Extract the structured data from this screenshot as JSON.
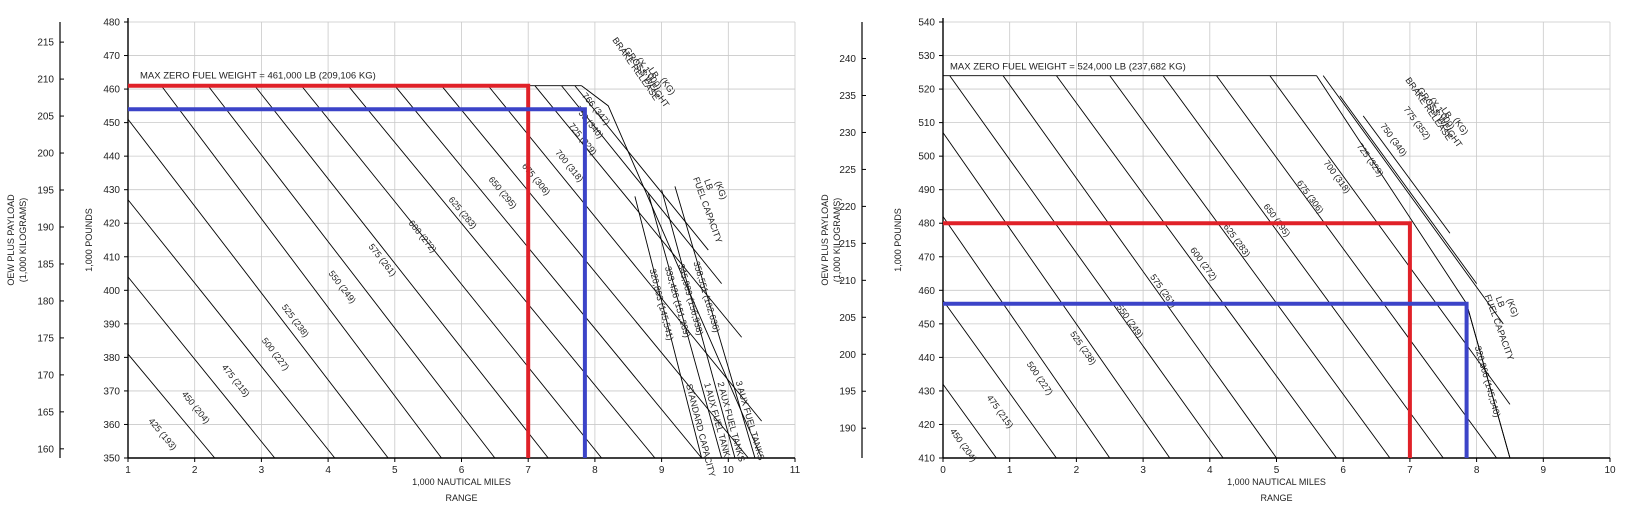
{
  "chart_data": [
    {
      "type": "line",
      "xlabel": "1,000 NAUTICAL MILES",
      "xlabel2": "RANGE",
      "ylabel": "1,000 POUNDS",
      "y2label": "OEW PLUS PAYLOAD",
      "y2label2": "(1,000 KILOGRAMS)",
      "xlim": [
        1,
        11
      ],
      "ylim": [
        350,
        480
      ],
      "y2lim": [
        158.76,
        217.72
      ],
      "x_ticks": [
        "1",
        "2",
        "3",
        "4",
        "5",
        "6",
        "7",
        "8",
        "9",
        "10",
        "11"
      ],
      "y_ticks": [
        "350",
        "360",
        "370",
        "380",
        "390",
        "400",
        "410",
        "420",
        "430",
        "440",
        "450",
        "460",
        "470",
        "480"
      ],
      "y2_ticks": [
        "160",
        "165",
        "170",
        "175",
        "180",
        "185",
        "190",
        "195",
        "200",
        "205",
        "210",
        "215"
      ],
      "max_zfw_label": "MAX ZERO FUEL WEIGHT = 461,000 LB (209,106 KG)",
      "max_zfw_lb": 461,
      "brake_release_title": [
        "BRAKE RELEASE",
        "GROSS WEIGHT",
        "(X 1,000)",
        "LB",
        "(KG)"
      ],
      "fuel_capacity_title": [
        "FUEL CAPACITY",
        "LB",
        "(KG)"
      ],
      "gross_weight_lines": [
        {
          "label": "425  (193)",
          "x1": 1.0,
          "y1": 381,
          "x2": 2.3,
          "y2": 350,
          "lx": 1.3,
          "ly": 361
        },
        {
          "label": "450  (204)",
          "x1": 1.0,
          "y1": 404,
          "x2": 3.2,
          "y2": 350,
          "lx": 1.8,
          "ly": 369
        },
        {
          "label": "475  (215)",
          "x1": 1.0,
          "y1": 427,
          "x2": 4.1,
          "y2": 350,
          "lx": 2.4,
          "ly": 377
        },
        {
          "label": "500  (227)",
          "x1": 1.0,
          "y1": 451,
          "x2": 4.9,
          "y2": 350,
          "lx": 3.0,
          "ly": 385
        },
        {
          "label": "525  (238)",
          "x1": 1.5,
          "y1": 461,
          "x2": 5.7,
          "y2": 350,
          "lx": 3.3,
          "ly": 395
        },
        {
          "label": "550  (249)",
          "x1": 2.2,
          "y1": 461,
          "x2": 6.5,
          "y2": 350,
          "lx": 4.0,
          "ly": 405
        },
        {
          "label": "575  (261)",
          "x1": 2.9,
          "y1": 461,
          "x2": 7.3,
          "y2": 350,
          "lx": 4.6,
          "ly": 413
        },
        {
          "label": "600  (272)",
          "x1": 3.6,
          "y1": 461,
          "x2": 8.1,
          "y2": 350,
          "lx": 5.2,
          "ly": 420
        },
        {
          "label": "625  (283)",
          "x1": 4.3,
          "y1": 461,
          "x2": 8.9,
          "y2": 350,
          "lx": 5.8,
          "ly": 427
        },
        {
          "label": "650  (295)",
          "x1": 5.0,
          "y1": 461,
          "x2": 9.6,
          "y2": 350,
          "lx": 6.4,
          "ly": 433
        },
        {
          "label": "675  (306)",
          "x1": 5.7,
          "y1": 461,
          "x2": 10.3,
          "y2": 350,
          "lx": 6.9,
          "ly": 437
        },
        {
          "label": "700  (318)",
          "x1": 6.4,
          "y1": 461,
          "x2": 10.5,
          "y2": 361,
          "lx": 7.4,
          "ly": 441
        },
        {
          "label": "725  (329)",
          "x1": 7.1,
          "y1": 461,
          "x2": 10.2,
          "y2": 386,
          "lx": 7.6,
          "ly": 449
        },
        {
          "label": "750  (340)",
          "x1": 7.5,
          "y1": 461,
          "x2": 9.9,
          "y2": 402,
          "lx": 7.7,
          "ly": 454
        },
        {
          "label": "766  (347)",
          "x1": 7.7,
          "y1": 461,
          "x2": 9.7,
          "y2": 412,
          "lx": 7.8,
          "ly": 458
        }
      ],
      "fuel_lines": [
        {
          "label": "320,863  (145,541)",
          "tank": "STANDARD CAPACITY",
          "x1": 8.6,
          "y1": 428,
          "x2": 9.6,
          "y2": 350
        },
        {
          "label": "333,426  (151,239)",
          "tank": "1 AUX FUEL TANK",
          "x1": 8.8,
          "y1": 429,
          "x2": 9.9,
          "y2": 350
        },
        {
          "label": "345,989  (156,938)",
          "tank": "2 AUX FUEL TANKS",
          "x1": 9.0,
          "y1": 430,
          "x2": 10.1,
          "y2": 350
        },
        {
          "label": "358,551  (162,636)",
          "tank": "3 AUX FUEL TANKS",
          "x1": 9.2,
          "y1": 431,
          "x2": 10.4,
          "y2": 350
        }
      ],
      "right_boundary": [
        [
          7.8,
          461
        ],
        [
          8.2,
          455
        ],
        [
          10.5,
          350
        ]
      ],
      "red_path": [
        [
          1.0,
          461
        ],
        [
          7.0,
          461
        ],
        [
          7.0,
          350
        ]
      ],
      "blue_path": [
        [
          1.0,
          454
        ],
        [
          7.85,
          454
        ],
        [
          7.85,
          350
        ]
      ]
    },
    {
      "type": "line",
      "xlabel": "1,000 NAUTICAL MILES",
      "xlabel2": "RANGE",
      "ylabel": "1,000 POUNDS",
      "y2label": "OEW PLUS PAYLOAD",
      "y2label2": "(1,000 KILOGRAMS)",
      "xlim": [
        0,
        10
      ],
      "ylim": [
        410,
        540
      ],
      "y2lim": [
        185.97,
        244.94
      ],
      "x_ticks": [
        "0",
        "1",
        "2",
        "3",
        "4",
        "5",
        "6",
        "7",
        "8",
        "9",
        "10"
      ],
      "y_ticks": [
        "410",
        "420",
        "430",
        "440",
        "450",
        "460",
        "470",
        "480",
        "490",
        "500",
        "510",
        "520",
        "530",
        "540"
      ],
      "y2_ticks": [
        "190",
        "195",
        "200",
        "205",
        "210",
        "215",
        "220",
        "225",
        "230",
        "235",
        "240"
      ],
      "max_zfw_label": "MAX ZERO FUEL WEIGHT = 524,000 LB (237,682 KG)",
      "max_zfw_lb": 524,
      "brake_release_title": [
        "BRAKE RELEASE",
        "GROSS WEIGHT",
        "(X 1,000)",
        "LB",
        "(KG)"
      ],
      "fuel_capacity_title": [
        "FUEL CAPACITY",
        "LB",
        "(KG)"
      ],
      "gross_weight_lines": [
        {
          "label": "450  (204)",
          "x1": 0.0,
          "y1": 432,
          "x2": 0.8,
          "y2": 410,
          "lx": 0.1,
          "ly": 418
        },
        {
          "label": "475  (215)",
          "x1": 0.0,
          "y1": 457,
          "x2": 1.7,
          "y2": 410,
          "lx": 0.65,
          "ly": 428
        },
        {
          "label": "500  (227)",
          "x1": 0.0,
          "y1": 482,
          "x2": 2.5,
          "y2": 410,
          "lx": 1.25,
          "ly": 438
        },
        {
          "label": "525  (238)",
          "x1": 0.0,
          "y1": 507,
          "x2": 3.4,
          "y2": 410,
          "lx": 1.9,
          "ly": 447
        },
        {
          "label": "550  (249)",
          "x1": 0.1,
          "y1": 524,
          "x2": 4.2,
          "y2": 410,
          "lx": 2.6,
          "ly": 455
        },
        {
          "label": "575  (261)",
          "x1": 0.9,
          "y1": 524,
          "x2": 5.0,
          "y2": 410,
          "lx": 3.1,
          "ly": 464
        },
        {
          "label": "600  (272)",
          "x1": 1.7,
          "y1": 524,
          "x2": 5.9,
          "y2": 410,
          "lx": 3.7,
          "ly": 472
        },
        {
          "label": "625  (283)",
          "x1": 2.5,
          "y1": 524,
          "x2": 6.7,
          "y2": 410,
          "lx": 4.2,
          "ly": 479
        },
        {
          "label": "650  (295)",
          "x1": 3.3,
          "y1": 524,
          "x2": 7.5,
          "y2": 410,
          "lx": 4.8,
          "ly": 485
        },
        {
          "label": "675  (306)",
          "x1": 4.1,
          "y1": 524,
          "x2": 8.3,
          "y2": 410,
          "lx": 5.3,
          "ly": 492
        },
        {
          "label": "700  (318)",
          "x1": 4.9,
          "y1": 524,
          "x2": 8.5,
          "y2": 426,
          "lx": 5.7,
          "ly": 498
        },
        {
          "label": "725  (329)",
          "x1": 5.7,
          "y1": 524,
          "x2": 8.4,
          "y2": 450,
          "lx": 6.2,
          "ly": 503
        },
        {
          "label": "750  (340)",
          "x1": 5.95,
          "y1": 518,
          "x2": 8.0,
          "y2": 462,
          "lx": 6.55,
          "ly": 509
        },
        {
          "label": "775  (352)",
          "x1": 6.3,
          "y1": 512,
          "x2": 7.6,
          "y2": 477,
          "lx": 6.9,
          "ly": 514
        }
      ],
      "fuel_lines": [
        {
          "label": "320,860  (145,540)",
          "tank": "",
          "x1": 7.85,
          "y1": 456,
          "x2": 8.5,
          "y2": 410
        }
      ],
      "right_boundary": [
        [
          5.6,
          524
        ],
        [
          7.85,
          456
        ],
        [
          8.5,
          410
        ]
      ],
      "red_path": [
        [
          0.0,
          480
        ],
        [
          7.0,
          480
        ],
        [
          7.0,
          410
        ]
      ],
      "blue_path": [
        [
          0.0,
          456
        ],
        [
          7.85,
          456
        ],
        [
          7.85,
          410
        ]
      ]
    }
  ]
}
